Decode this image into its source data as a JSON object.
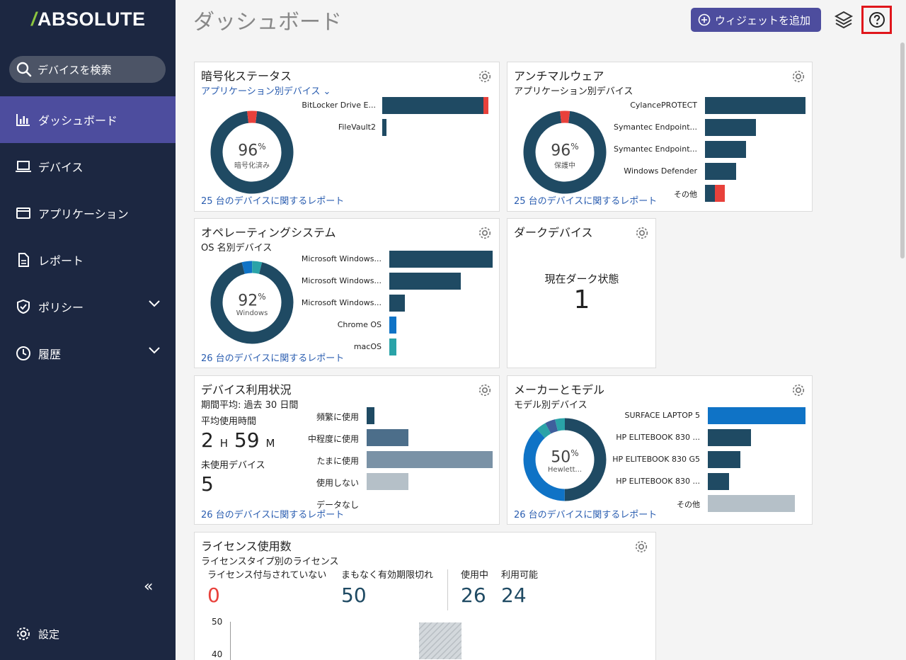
{
  "app": {
    "logo": "ABSOLUTE"
  },
  "sidebar": {
    "search_label": "デバイスを検索",
    "items": [
      {
        "label": "ダッシュボード",
        "icon": "bar-chart-icon",
        "active": true
      },
      {
        "label": "デバイス",
        "icon": "laptop-icon"
      },
      {
        "label": "アプリケーション",
        "icon": "window-icon"
      },
      {
        "label": "レポート",
        "icon": "document-icon"
      },
      {
        "label": "ポリシー",
        "icon": "shield-icon",
        "expandable": true
      },
      {
        "label": "履歴",
        "icon": "clock-icon",
        "expandable": true
      }
    ],
    "collapse_label": "«",
    "settings_label": "設定"
  },
  "header": {
    "title": "ダッシュボード",
    "add_widget_label": "ウィジェットを追加"
  },
  "colors": {
    "navy": "#1f4a63",
    "red": "#e8413b",
    "blue": "#0f73c6",
    "teal": "#2aa3a8",
    "accent": "#4d4d9e"
  },
  "widgets": {
    "encryption": {
      "title": "暗号化ステータス",
      "subtitle": "アプリケーション別デバイス",
      "percent": "96",
      "pct_sign": "%",
      "center_label": "暗号化済み",
      "report": "25 台のデバイスに関するレポート",
      "bars": [
        {
          "label": "BitLocker Drive E...",
          "value": 0.96,
          "extra": 0.04
        },
        {
          "label": "FileVault2",
          "value": 0.04
        }
      ]
    },
    "antimalware": {
      "title": "アンチマルウェア",
      "subtitle": "アプリケーション別デバイス",
      "percent": "96",
      "pct_sign": "%",
      "center_label": "保護中",
      "report": "25 台のデバイスに関するレポート",
      "bars": [
        {
          "label": "CylancePROTECT",
          "value": 1.0
        },
        {
          "label": "Symantec Endpoint...",
          "value": 0.51
        },
        {
          "label": "Symantec Endpoint...",
          "value": 0.41
        },
        {
          "label": "Windows Defender",
          "value": 0.31
        },
        {
          "label": "その他",
          "value": 0.2,
          "extra": 0.1
        }
      ]
    },
    "os": {
      "title": "オペレーティングシステム",
      "subtitle": "OS 名別デバイス",
      "percent": "92",
      "pct_sign": "%",
      "center_label": "Windows",
      "report": "26 台のデバイスに関するレポート",
      "bars": [
        {
          "label": "Microsoft Windows...",
          "value": 1.0,
          "color": "#1f4a63"
        },
        {
          "label": "Microsoft Windows...",
          "value": 0.69,
          "color": "#1f4a63"
        },
        {
          "label": "Microsoft Windows...",
          "value": 0.15,
          "color": "#1f4a63"
        },
        {
          "label": "Chrome OS",
          "value": 0.07,
          "color": "#0f73c6"
        },
        {
          "label": "macOS",
          "value": 0.07,
          "color": "#2aa3a8"
        }
      ]
    },
    "dark": {
      "title": "ダークデバイス",
      "label": "現在ダーク状態",
      "value": "1"
    },
    "usage": {
      "title": "デバイス利用状況",
      "subtitle": "期間平均: 過去 30 日間",
      "avg_label": "平均使用時間",
      "hours": "2",
      "h_unit": "H",
      "minutes": "59",
      "m_unit": "M",
      "unused_label": "未使用デバイス",
      "unused_value": "5",
      "report": "26 台のデバイスに関するレポート",
      "bars": [
        {
          "label": "頻繁に使用",
          "value": 0.06,
          "color": "#1f4a63"
        },
        {
          "label": "中程度に使用",
          "value": 0.33,
          "color": "#4c6e8a"
        },
        {
          "label": "たまに使用",
          "value": 1.0,
          "color": "#7a92a6"
        },
        {
          "label": "使用しない",
          "value": 0.33,
          "color": "#b5c0c8"
        },
        {
          "label": "データなし",
          "value": 0,
          "color": "#b5c0c8"
        }
      ]
    },
    "maker": {
      "title": "メーカーとモデル",
      "subtitle": "モデル別デバイス",
      "percent": "50",
      "pct_sign": "%",
      "center_label": "Hewlett...",
      "report": "26 台のデバイスに関するレポート",
      "bars": [
        {
          "label": "SURFACE LAPTOP 5",
          "value": 1.0,
          "color": "#0f73c6"
        },
        {
          "label": "HP ELITEBOOK 830 ...",
          "value": 0.44,
          "color": "#1f4a63"
        },
        {
          "label": "HP ELITEBOOK 830 G5",
          "value": 0.33,
          "color": "#1f4a63"
        },
        {
          "label": "HP ELITEBOOK 830 ...",
          "value": 0.22,
          "color": "#1f4a63"
        },
        {
          "label": "その他",
          "value": 0.89,
          "color": "#b5c0c8"
        }
      ]
    },
    "license": {
      "title": "ライセンス使用数",
      "subtitle": "ライセンスタイプ別のライセンス",
      "unassigned_label": "ライセンス付与されていない",
      "unassigned_value": "0",
      "expiring_label": "まもなく有効期限切れ",
      "expiring_value": "50",
      "in_use_label": "使用中",
      "in_use_value": "26",
      "available_label": "利用可能",
      "available_value": "24",
      "y_ticks": [
        "50",
        "40"
      ]
    }
  }
}
